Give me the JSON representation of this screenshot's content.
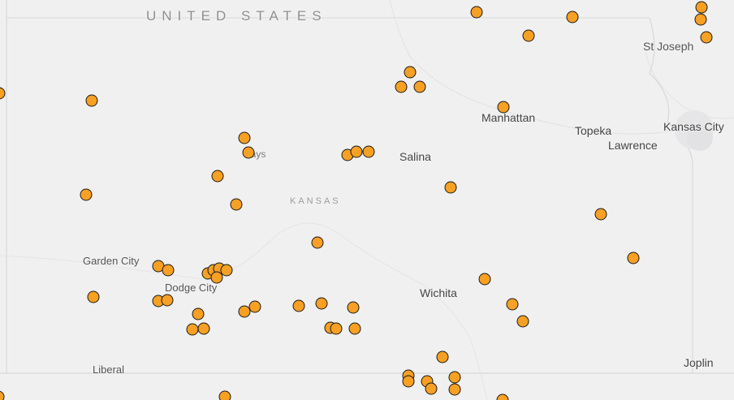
{
  "map": {
    "labels": {
      "country": "UNITED STATES",
      "state": "KANSAS",
      "cities": [
        {
          "key": "stjoseph",
          "name": "St Joseph"
        },
        {
          "key": "manhattan",
          "name": "Manhattan"
        },
        {
          "key": "topeka",
          "name": "Topeka"
        },
        {
          "key": "kansascity",
          "name": "Kansas City"
        },
        {
          "key": "lawrence",
          "name": "Lawrence"
        },
        {
          "key": "hays",
          "name": "Hays"
        },
        {
          "key": "salina",
          "name": "Salina"
        },
        {
          "key": "gardencity",
          "name": "Garden City"
        },
        {
          "key": "dodgecity",
          "name": "Dodge City"
        },
        {
          "key": "wichita",
          "name": "Wichita"
        },
        {
          "key": "liberal",
          "name": "Liberal"
        },
        {
          "key": "joplin",
          "name": "Joplin"
        }
      ]
    },
    "marker_style": {
      "fill": "#f7a023",
      "stroke": "#1a1a1a"
    },
    "marker_count": 58
  }
}
